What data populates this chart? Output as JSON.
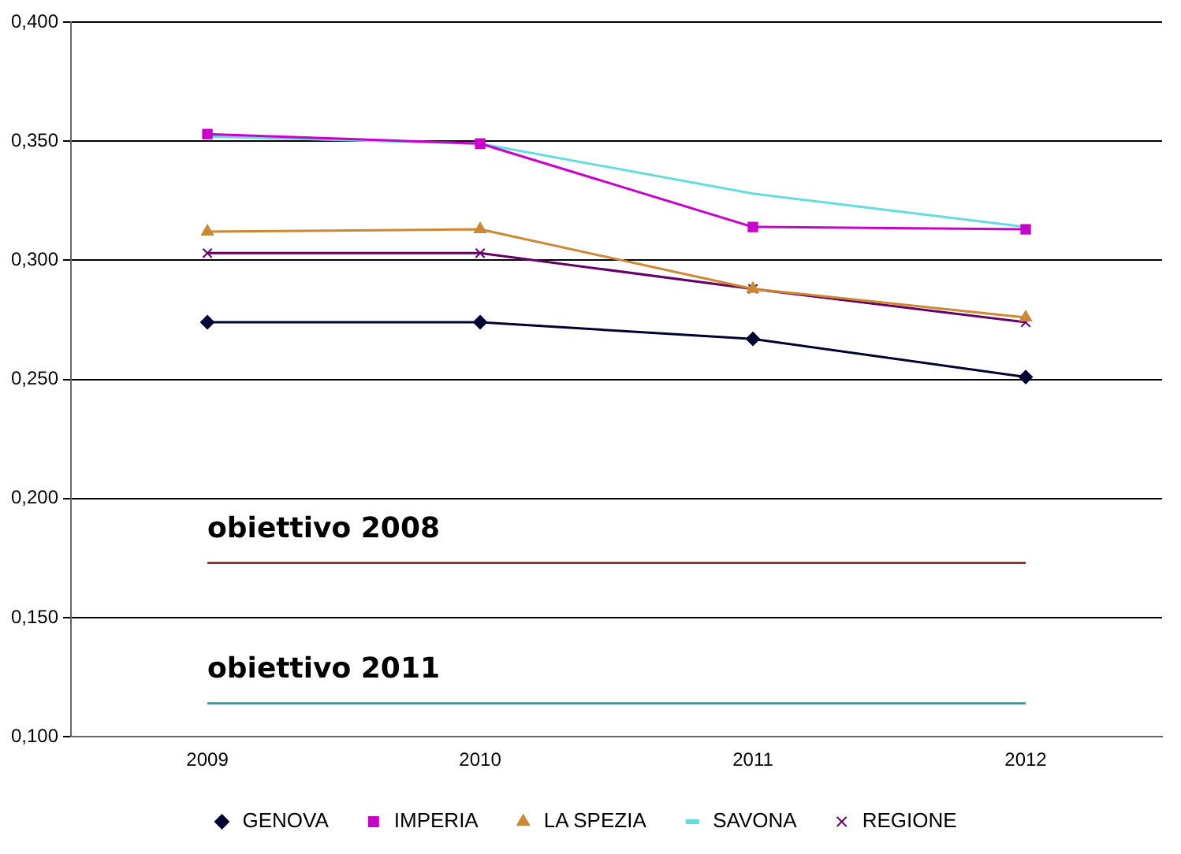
{
  "chart_data": {
    "type": "line",
    "categories": [
      "2009",
      "2010",
      "2011",
      "2012"
    ],
    "series": [
      {
        "name": "GENOVA",
        "color": "#000033",
        "marker": "diamond",
        "values": [
          0.274,
          0.274,
          0.267,
          0.251
        ]
      },
      {
        "name": "IMPERIA",
        "color": "#cc00cc",
        "marker": "square",
        "values": [
          0.353,
          0.349,
          0.314,
          0.313
        ]
      },
      {
        "name": "LA SPEZIA",
        "color": "#cc8833",
        "marker": "triangle",
        "values": [
          0.312,
          0.313,
          0.288,
          0.276
        ]
      },
      {
        "name": "SAVONA",
        "color": "#66dddd",
        "marker": "none",
        "values": [
          0.352,
          0.349,
          0.328,
          0.314
        ]
      },
      {
        "name": "REGIONE",
        "color": "#660066",
        "marker": "cross",
        "values": [
          0.303,
          0.303,
          0.288,
          0.274
        ]
      }
    ],
    "ylim": [
      0.1,
      0.4
    ],
    "yticks": [
      {
        "value": 0.1,
        "label": "0,100"
      },
      {
        "value": 0.15,
        "label": "0,150"
      },
      {
        "value": 0.2,
        "label": "0,200"
      },
      {
        "value": 0.25,
        "label": "0,250"
      },
      {
        "value": 0.3,
        "label": "0,300"
      },
      {
        "value": 0.35,
        "label": "0,350"
      },
      {
        "value": 0.4,
        "label": "0,400"
      }
    ],
    "ref_lines": [
      {
        "axis": "y",
        "value": 0.173,
        "label": "obiettivo 2008",
        "color": "#993333"
      },
      {
        "axis": "y",
        "value": 0.114,
        "label": "obiettivo 2011",
        "color": "#339999"
      }
    ],
    "grid": "y",
    "legend": "bottom"
  }
}
